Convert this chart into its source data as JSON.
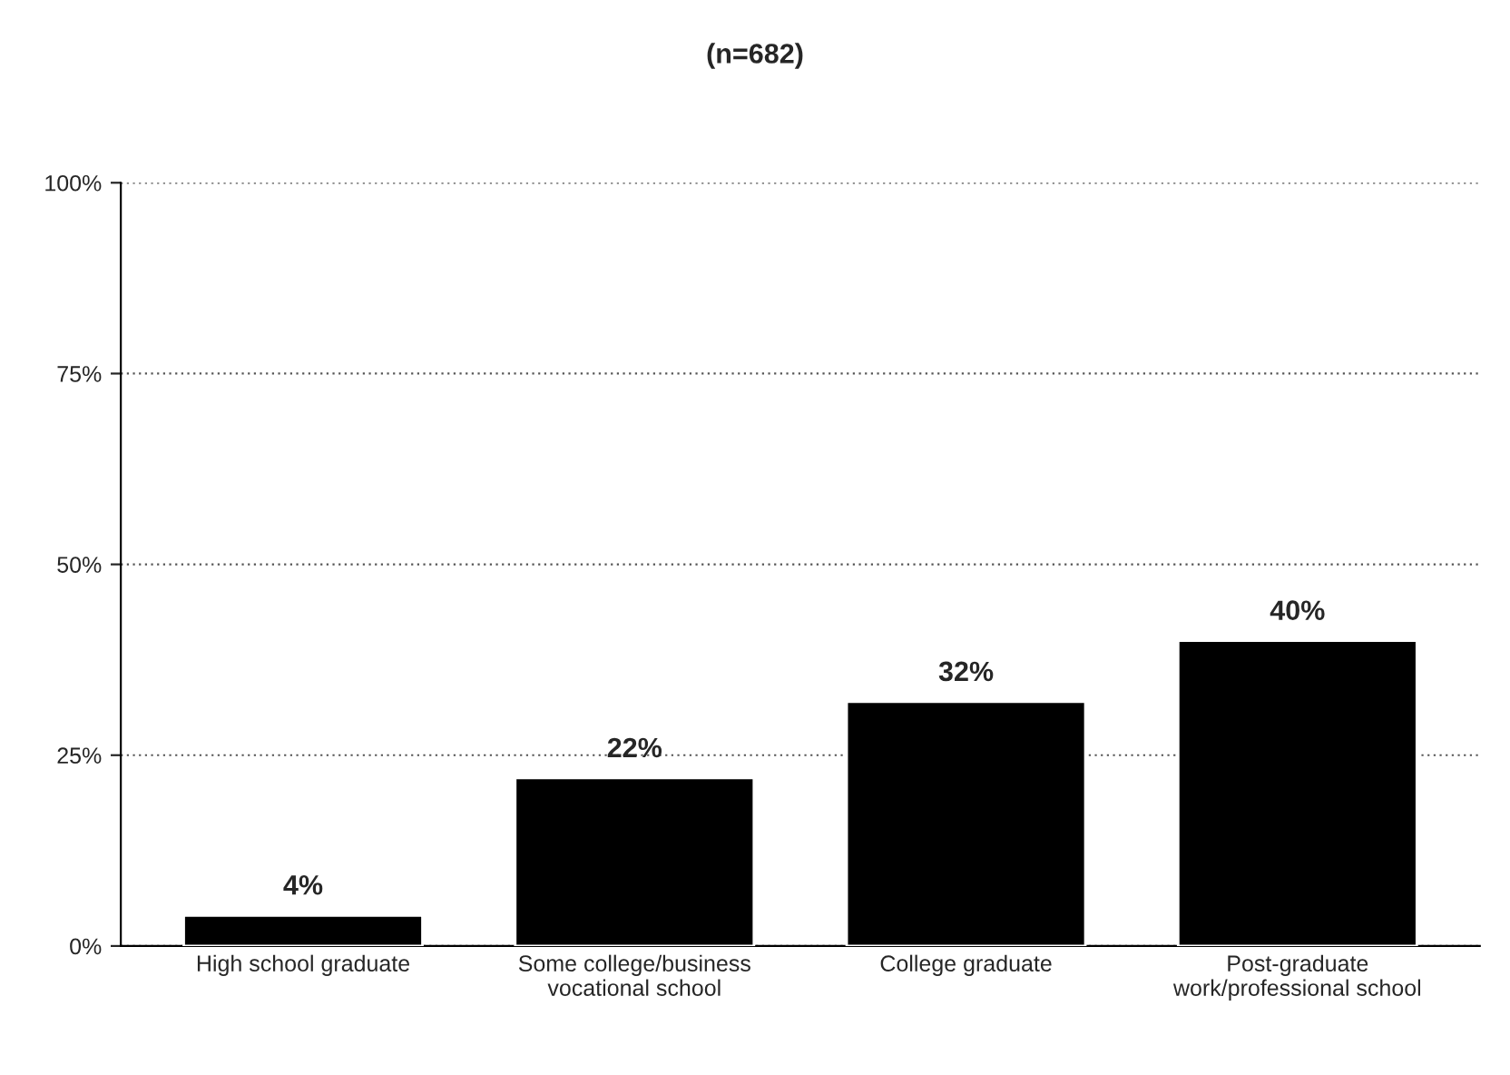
{
  "chart_data": {
    "type": "bar",
    "title": "(n=682)",
    "categories": [
      "High school graduate",
      "Some college/business\nvocational school",
      "College graduate",
      "Post-graduate\nwork/professional school"
    ],
    "values": [
      4,
      22,
      32,
      40
    ],
    "value_labels": [
      "4%",
      "22%",
      "32%",
      "40%"
    ],
    "color": "#000000",
    "ylim": [
      0,
      100
    ],
    "yticks": [
      {
        "value": 0,
        "label": "0%"
      },
      {
        "value": 25,
        "label": "25%"
      },
      {
        "value": 50,
        "label": "50%"
      },
      {
        "value": 75,
        "label": "75%"
      },
      {
        "value": 100,
        "label": "100%"
      }
    ],
    "grid": "y",
    "legend": false
  }
}
